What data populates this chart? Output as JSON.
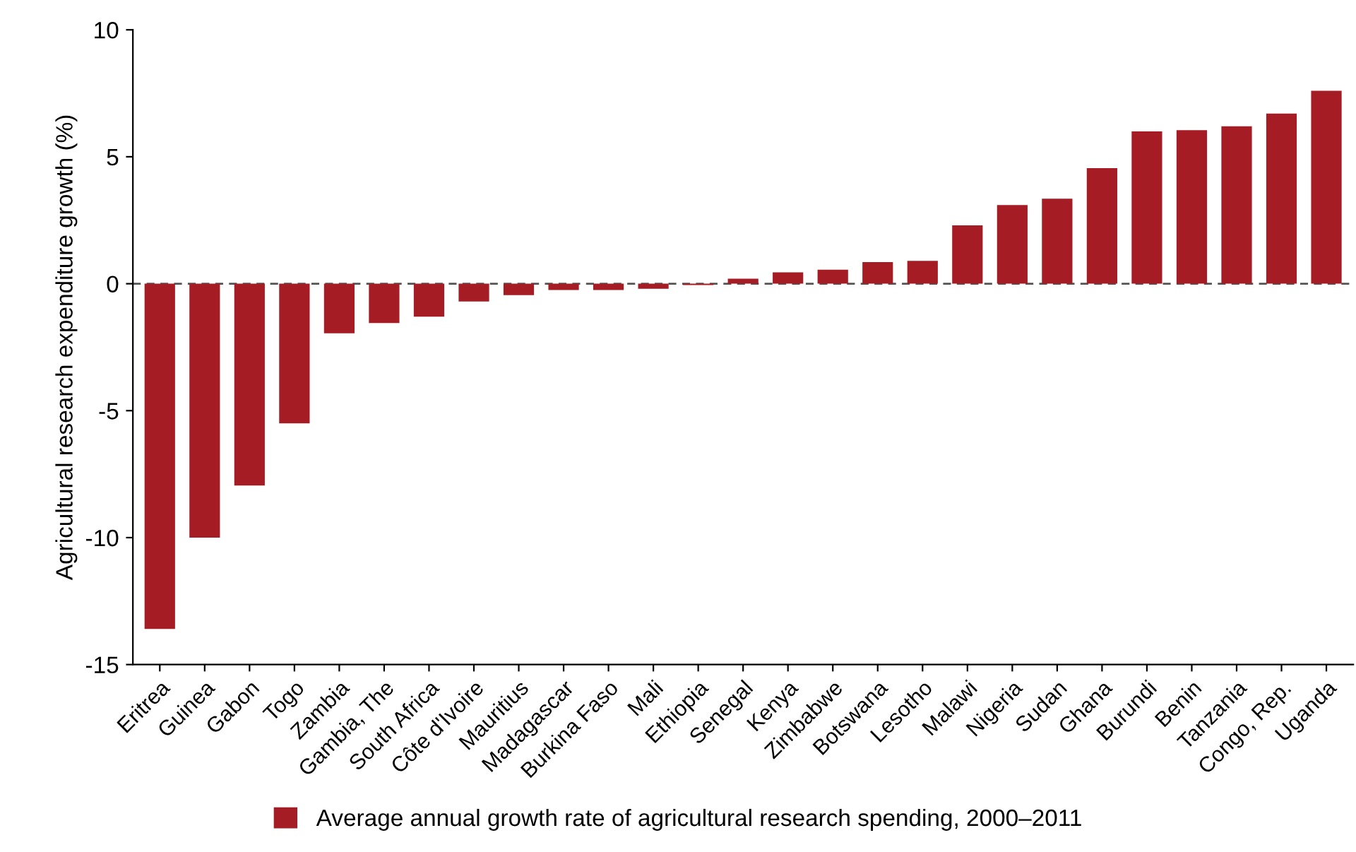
{
  "chart_data": {
    "type": "bar",
    "ylabel": "Agricultural research expenditure growth (%)",
    "categories": [
      "Eritrea",
      "Guinea",
      "Gabon",
      "Togo",
      "Zambia",
      "Gambia, The",
      "South Africa",
      "Côte d'Ivoire",
      "Mauritius",
      "Madagascar",
      "Burkina Faso",
      "Mali",
      "Ethiopia",
      "Senegal",
      "Kenya",
      "Zimbabwe",
      "Botswana",
      "Lesotho",
      "Malawi",
      "Nigeria",
      "Sudan",
      "Ghana",
      "Burundi",
      "Benin",
      "Tanzania",
      "Congo, Rep.",
      "Uganda"
    ],
    "series": [
      {
        "name": "Average annual growth rate of agricultural research spending, 2000–2011",
        "color": "#a51c24",
        "values": [
          -13.6,
          -10.0,
          -7.95,
          -5.5,
          -1.95,
          -1.55,
          -1.3,
          -0.7,
          -0.45,
          -0.25,
          -0.25,
          -0.2,
          -0.05,
          0.2,
          0.45,
          0.55,
          0.85,
          0.9,
          2.3,
          3.1,
          3.35,
          4.55,
          6.0,
          6.05,
          6.2,
          6.7,
          7.6
        ]
      }
    ],
    "ylim": [
      -15,
      10
    ],
    "yticks": [
      -15,
      -10,
      -5,
      0,
      5,
      10
    ],
    "ref_lines": [
      {
        "axis": "y",
        "value": 0,
        "color": "#555555",
        "line_style": "dashed"
      }
    ],
    "grid": false,
    "legend": "bottom"
  }
}
